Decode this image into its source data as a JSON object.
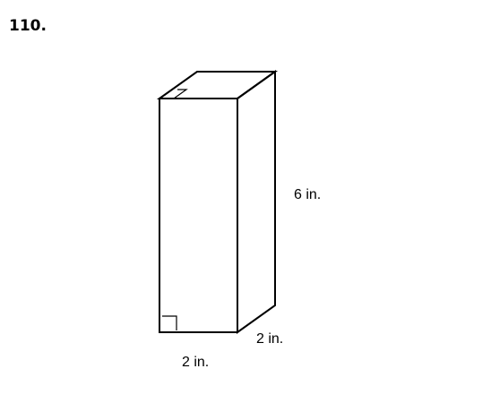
{
  "problem": {
    "number": "110."
  },
  "figure": {
    "shape": "rectangular-prism",
    "height_label": "6 in.",
    "depth_label": "2 in.",
    "width_label": "2 in.",
    "line_color": "#000000"
  }
}
